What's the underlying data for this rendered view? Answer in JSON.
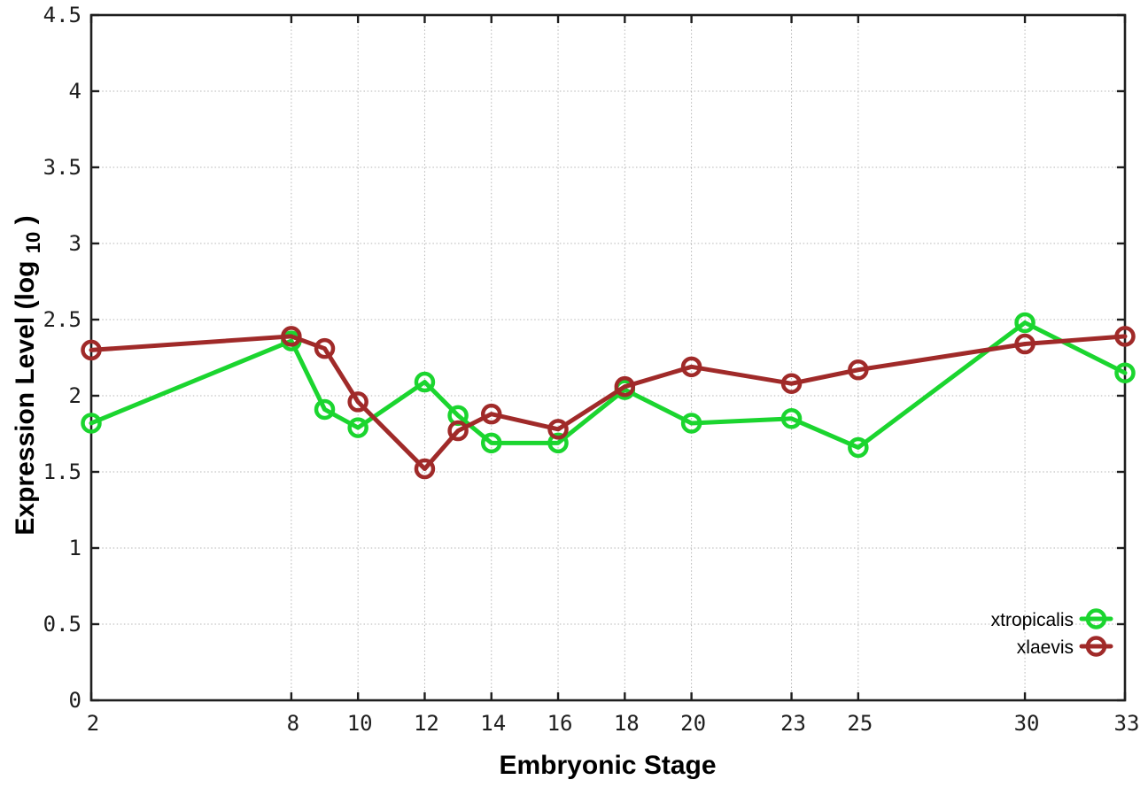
{
  "chart_data": {
    "type": "line",
    "title": "",
    "xlabel": "Embryonic Stage",
    "ylabel": "Expression Level (log10)",
    "ylabel_parts": {
      "main": "Expression Level (log",
      "sub": "10",
      "close": ")"
    },
    "xlim": [
      2,
      33
    ],
    "ylim": [
      0,
      4.5
    ],
    "grid": true,
    "legend_position": "bottom-right",
    "x_ticks": [
      2,
      8,
      10,
      12,
      14,
      16,
      18,
      20,
      23,
      25,
      30,
      33
    ],
    "x_tick_labels": [
      "2",
      "8",
      "10",
      "12",
      "14",
      "16",
      "18",
      "20",
      "23",
      "25",
      "30",
      "33"
    ],
    "y_ticks": [
      0,
      0.5,
      1,
      1.5,
      2,
      2.5,
      3,
      3.5,
      4,
      4.5
    ],
    "y_tick_labels": [
      "0",
      "0.5",
      "1",
      "1.5",
      "2",
      "2.5",
      "3",
      "3.5",
      "4",
      "4.5"
    ],
    "x": [
      2,
      8,
      9,
      10,
      12,
      13,
      14,
      16,
      18,
      20,
      23,
      25,
      30,
      33
    ],
    "series": [
      {
        "name": "xtropicalis",
        "color": "#1bd52f",
        "values": [
          1.82,
          2.36,
          1.91,
          1.79,
          2.09,
          1.87,
          1.69,
          1.69,
          2.04,
          1.82,
          1.85,
          1.66,
          2.48,
          2.15
        ]
      },
      {
        "name": "xlaevis",
        "color": "#a02a29",
        "values": [
          2.3,
          2.39,
          2.31,
          1.96,
          1.52,
          1.77,
          1.88,
          1.78,
          2.06,
          2.19,
          2.08,
          2.17,
          2.34,
          2.39
        ]
      }
    ],
    "colors": {
      "grid": "#b5b5b5",
      "axis": "#1e1e1e",
      "tick_text": "#1e1e1e",
      "background": "#ffffff"
    }
  }
}
